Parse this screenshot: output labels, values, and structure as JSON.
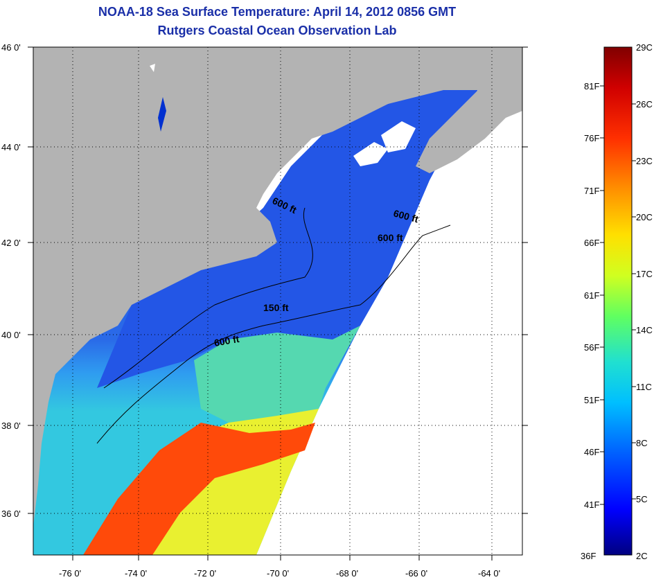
{
  "header": {
    "title": "NOAA-18 Sea Surface Temperature:  April 14, 2012 0856 GMT",
    "subtitle": "Rutgers Coastal Ocean Observation Lab"
  },
  "map": {
    "lat_labels": [
      "46 0'",
      "44 0'",
      "42 0'",
      "40 0'",
      "38 0'",
      "36 0'"
    ],
    "lon_labels": [
      "-76 0'",
      "-74 0'",
      "-72 0'",
      "-70 0'",
      "-68 0'",
      "-66 0'",
      "-64 0'"
    ],
    "lat_range": [
      35,
      46
    ],
    "lon_range": [
      -77,
      -63
    ],
    "contour_labels": [
      "600 ft",
      "600 ft",
      "600 ft",
      "150 ft",
      "600 ft"
    ],
    "colors": {
      "land": "#b3b3b3",
      "no_data": "#ffffff",
      "cold_water": "#1f49e0",
      "warm_core": "#ff4a0a"
    }
  },
  "colorbar": {
    "celsius_labels": [
      "29C",
      "26C",
      "23C",
      "20C",
      "17C",
      "14C",
      "11C",
      "8C",
      "5C",
      "2C"
    ],
    "fahrenheit_labels": [
      "81F",
      "76F",
      "71F",
      "66F",
      "61F",
      "56F",
      "51F",
      "46F",
      "41F",
      "36F"
    ],
    "range_c": [
      2,
      29
    ],
    "colors": [
      "#000080",
      "#0000ff",
      "#0060ff",
      "#00bfff",
      "#20e0d0",
      "#60ff60",
      "#d0ff20",
      "#ffe000",
      "#ff9000",
      "#ff3000",
      "#d00000",
      "#800000"
    ]
  }
}
